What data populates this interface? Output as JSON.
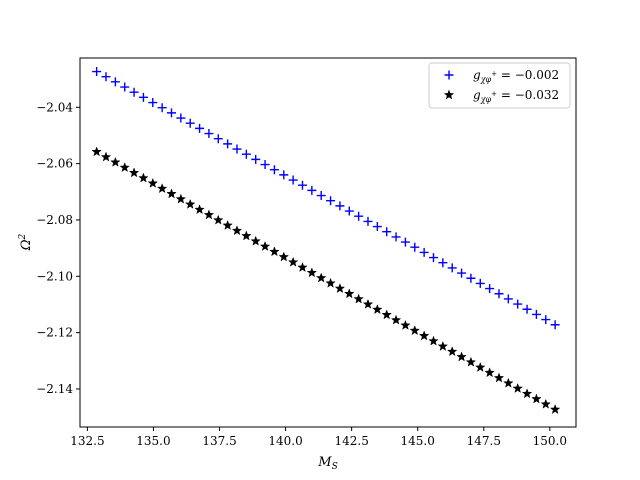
{
  "chart_data": {
    "type": "scatter",
    "xlabel": "M_S",
    "ylabel": "Ω²",
    "xlim": [
      132.22,
      150.99
    ],
    "ylim": [
      -2.1535,
      -2.0225
    ],
    "xticks": [
      132.5,
      135.0,
      137.5,
      140.0,
      142.5,
      145.0,
      147.5,
      150.0
    ],
    "xtick_labels": [
      "132.5",
      "135.0",
      "137.5",
      "140.0",
      "142.5",
      "145.0",
      "147.5",
      "150.0"
    ],
    "yticks": [
      -2.04,
      -2.06,
      -2.08,
      -2.1,
      -2.12,
      -2.14
    ],
    "ytick_labels": [
      "−2.04",
      "−2.06",
      "−2.08",
      "−2.10",
      "−2.12",
      "−2.14"
    ],
    "grid": false,
    "legend_position": "top-right",
    "series": [
      {
        "name": "g_{χφ⁺} = −0.002",
        "legend_main": "g",
        "legend_sub": "χφ",
        "legend_sup": "+",
        "legend_value": " = −0.002",
        "marker": "plus",
        "color": "#0000ff",
        "x_start": 132.85,
        "x_end": 150.2,
        "count": 50,
        "y_start": -2.0273,
        "y_end": -2.1172
      },
      {
        "name": "g_{χφ⁺} = −0.032",
        "legend_main": "g",
        "legend_sub": "χφ",
        "legend_sup": "+",
        "legend_value": " = −0.032",
        "marker": "star",
        "color": "#000000",
        "x_start": 132.85,
        "x_end": 150.2,
        "count": 50,
        "y_start": -2.0558,
        "y_end": -2.1473
      }
    ]
  }
}
